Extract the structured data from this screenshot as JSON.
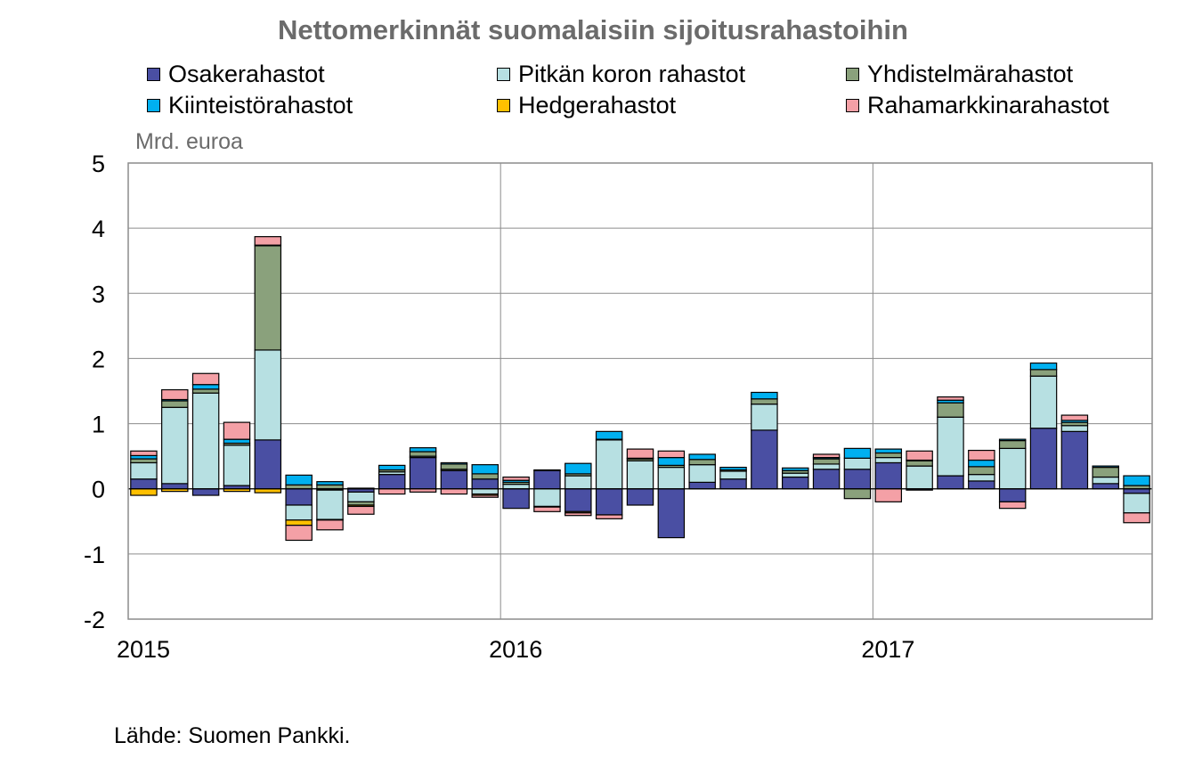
{
  "chart_data": {
    "type": "bar",
    "stacked": true,
    "title": "Nettomerkinnät suomalaisiin sijoitusrahastoihin",
    "ylabel": "Mrd. euroa",
    "ylim": [
      -2,
      5
    ],
    "yticks": [
      5,
      4,
      3,
      2,
      1,
      0,
      -1,
      -2
    ],
    "xticks": [
      "2015",
      "2016",
      "2017"
    ],
    "grid": "vertical at year boundaries",
    "legend_position": "top",
    "source": "Lähde: Suomen Pankki.",
    "categories": [
      "2015-01",
      "2015-02",
      "2015-03",
      "2015-04",
      "2015-05",
      "2015-06",
      "2015-07",
      "2015-08",
      "2015-09",
      "2015-10",
      "2015-11",
      "2015-12",
      "2016-01",
      "2016-02",
      "2016-03",
      "2016-04",
      "2016-05",
      "2016-06",
      "2016-07",
      "2016-08",
      "2016-09",
      "2016-10",
      "2016-11",
      "2016-12",
      "2017-01",
      "2017-02",
      "2017-03",
      "2017-04",
      "2017-05",
      "2017-06",
      "2017-07",
      "2017-08",
      "2017-09"
    ],
    "series": [
      {
        "name": "Osakerahastot",
        "color": "#4a4fa3",
        "values": [
          0.15,
          0.08,
          -0.1,
          0.05,
          0.75,
          -0.25,
          -0.02,
          -0.05,
          0.22,
          0.48,
          0.28,
          0.15,
          -0.3,
          0.28,
          -0.35,
          -0.4,
          -0.25,
          -0.75,
          0.1,
          0.15,
          0.9,
          0.18,
          0.3,
          0.3,
          0.4,
          -0.02,
          0.2,
          0.12,
          -0.2,
          0.93,
          0.88,
          0.08,
          -0.07
        ]
      },
      {
        "name": "Pitkän koron rahastot",
        "color": "#b7e0e2",
        "values": [
          0.25,
          1.17,
          1.47,
          0.62,
          1.38,
          -0.23,
          -0.45,
          -0.15,
          0.04,
          0.02,
          0.02,
          -0.08,
          0.07,
          -0.27,
          0.2,
          0.75,
          0.43,
          0.33,
          0.27,
          0.12,
          0.4,
          0.06,
          0.08,
          0.17,
          0.08,
          0.35,
          0.9,
          0.1,
          0.62,
          0.8,
          0.09,
          0.1,
          -0.3
        ]
      },
      {
        "name": "Yhdistelmärahastot",
        "color": "#8aa17c",
        "values": [
          0.06,
          0.1,
          0.06,
          0.03,
          1.6,
          0.06,
          0.06,
          -0.05,
          0.03,
          0.07,
          0.08,
          0.08,
          0.03,
          -0.01,
          0.03,
          0.01,
          0.03,
          0.03,
          0.08,
          0.02,
          0.08,
          0.04,
          0.08,
          -0.15,
          0.07,
          0.08,
          0.22,
          0.12,
          0.12,
          0.1,
          0.05,
          0.15,
          0.05
        ]
      },
      {
        "name": "Kiinteistörahastot",
        "color": "#00b0f0",
        "values": [
          0.05,
          0.02,
          0.07,
          0.06,
          0.01,
          0.15,
          0.05,
          0.01,
          0.07,
          0.06,
          0.02,
          0.14,
          0.03,
          0.01,
          0.16,
          0.12,
          0.01,
          0.12,
          0.08,
          0.04,
          0.1,
          0.04,
          0.02,
          0.15,
          0.06,
          0.01,
          0.04,
          0.1,
          0.02,
          0.1,
          0.03,
          0.02,
          0.15
        ]
      },
      {
        "name": "Hedgerahastot",
        "color": "#ffc000",
        "values": [
          -0.1,
          -0.04,
          0.0,
          -0.04,
          -0.06,
          -0.08,
          -0.01,
          -0.02,
          0.0,
          0.0,
          0.0,
          -0.02,
          0.0,
          0.0,
          -0.02,
          0.0,
          0.0,
          0.0,
          0.0,
          0.0,
          0.0,
          0.0,
          0.0,
          0.0,
          0.0,
          0.0,
          0.0,
          0.0,
          0.0,
          0.0,
          0.0,
          0.0,
          0.0
        ]
      },
      {
        "name": "Rahamarkkinarahastot",
        "color": "#f4a0a6",
        "values": [
          0.07,
          0.15,
          0.17,
          0.26,
          0.13,
          -0.23,
          -0.15,
          -0.12,
          -0.08,
          -0.05,
          -0.08,
          -0.03,
          0.05,
          -0.07,
          -0.04,
          -0.06,
          0.14,
          0.1,
          0.0,
          0.0,
          0.0,
          0.0,
          0.05,
          0.0,
          -0.2,
          0.14,
          0.05,
          0.15,
          -0.1,
          0.0,
          0.08,
          0.0,
          -0.15
        ]
      }
    ]
  }
}
